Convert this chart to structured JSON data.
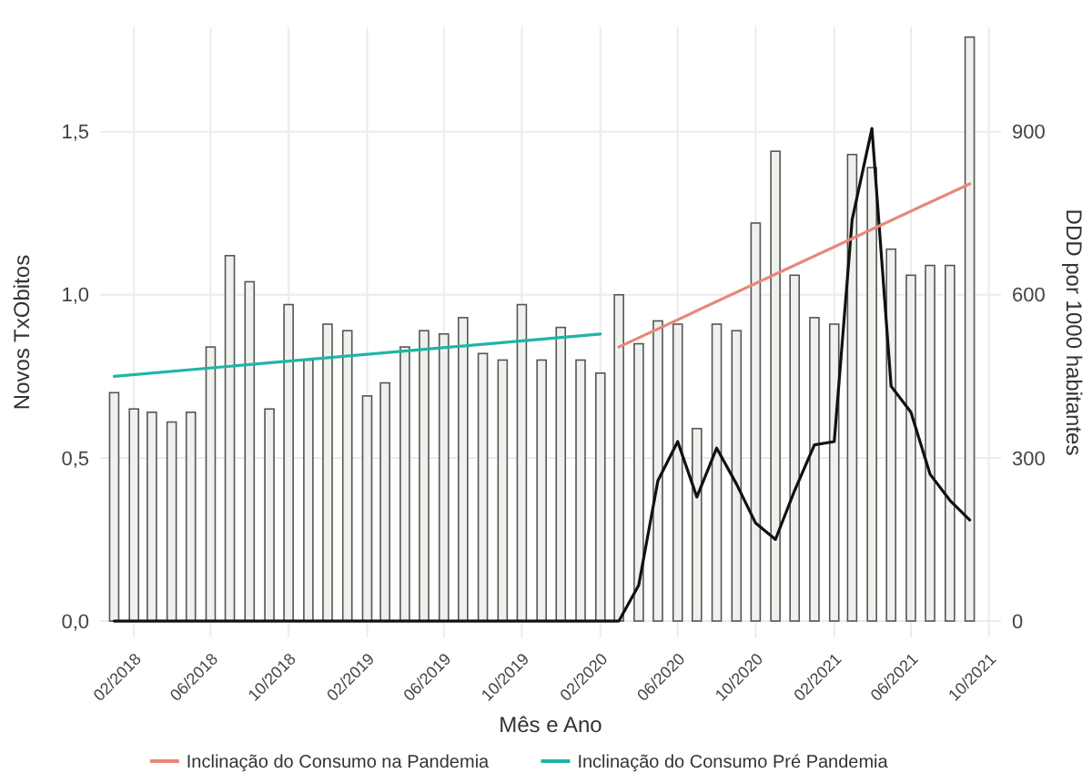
{
  "chart_data": {
    "type": "bar",
    "xlabel": "Mês e Ano",
    "ylabel": "Novos TxObitos",
    "y2label": "DDD por 1000 habitantes",
    "x": [
      "2018-01",
      "2018-02",
      "2018-03",
      "2018-04",
      "2018-05",
      "2018-06",
      "2018-07",
      "2018-08",
      "2018-09",
      "2018-10",
      "2018-11",
      "2018-12",
      "2019-01",
      "2019-02",
      "2019-03",
      "2019-04",
      "2019-05",
      "2019-06",
      "2019-07",
      "2019-08",
      "2019-09",
      "2019-10",
      "2019-11",
      "2019-12",
      "2020-01",
      "2020-02",
      "2020-03",
      "2020-04",
      "2020-05",
      "2020-06",
      "2020-07",
      "2020-08",
      "2020-09",
      "2020-10",
      "2020-11",
      "2020-12",
      "2021-01",
      "2021-02",
      "2021-03",
      "2021-04",
      "2021-05",
      "2021-06",
      "2021-07",
      "2021-08",
      "2021-09"
    ],
    "series": [
      {
        "axis": "y2",
        "color": "#eef2ec",
        "values": [
          420,
          390,
          384,
          366,
          384,
          504,
          672,
          624,
          390,
          582,
          480,
          546,
          534,
          414,
          438,
          504,
          534,
          528,
          558,
          492,
          480,
          582,
          480,
          540,
          480,
          456,
          600,
          510,
          552,
          546,
          354,
          546,
          534,
          732,
          864,
          636,
          558,
          546,
          858,
          834,
          684,
          636,
          654,
          654,
          1074
        ]
      },
      {
        "type": "line",
        "color": "#111111",
        "values": [
          0,
          0,
          0,
          0,
          0,
          0,
          0,
          0,
          0,
          0,
          0,
          0,
          0,
          0,
          0,
          0,
          0,
          0,
          0,
          0,
          0,
          0,
          0,
          0,
          0,
          0,
          0,
          0.11,
          0.43,
          0.55,
          0.38,
          0.53,
          0.42,
          0.3,
          0.25,
          0.4,
          0.54,
          0.55,
          1.23,
          1.51,
          0.72,
          0.64,
          0.45,
          0.37,
          0.31
        ]
      },
      {
        "type": "line",
        "axis": "y2",
        "name": "Inclinação do Consumo na Pandemia",
        "color": "#e8877a",
        "x": [
          "2020-03",
          "2021-09"
        ],
        "values": [
          504,
          804
        ]
      },
      {
        "type": "line",
        "axis": "y2",
        "name": "Inclinação do Consumo Pré Pandemia",
        "color": "#1fb5a8",
        "x": [
          "2018-01",
          "2020-02"
        ],
        "values": [
          450,
          528
        ]
      }
    ],
    "xlim": [
      "2017-12-10",
      "2021-10-20"
    ],
    "xticks": [
      {
        "value": "2018-02",
        "label": "02/2018"
      },
      {
        "value": "2018-06",
        "label": "06/2018"
      },
      {
        "value": "2018-10",
        "label": "10/2018"
      },
      {
        "value": "2019-02",
        "label": "02/2019"
      },
      {
        "value": "2019-06",
        "label": "06/2019"
      },
      {
        "value": "2019-10",
        "label": "10/2019"
      },
      {
        "value": "2020-02",
        "label": "02/2020"
      },
      {
        "value": "2020-06",
        "label": "06/2020"
      },
      {
        "value": "2020-10",
        "label": "10/2020"
      },
      {
        "value": "2021-02",
        "label": "02/2021"
      },
      {
        "value": "2021-06",
        "label": "06/2021"
      },
      {
        "value": "2021-10",
        "label": "10/2021"
      }
    ],
    "ylim": [
      -0.05,
      1.82
    ],
    "yticks": [
      {
        "value": 0,
        "label": "0,0"
      },
      {
        "value": 0.5,
        "label": "0,5"
      },
      {
        "value": 1,
        "label": "1,0"
      },
      {
        "value": 1.5,
        "label": "1,5"
      }
    ],
    "y2lim": [
      -30,
      1092
    ],
    "y2ticks": [
      0,
      300,
      600,
      900
    ],
    "grid": true,
    "legend": "bottom"
  }
}
